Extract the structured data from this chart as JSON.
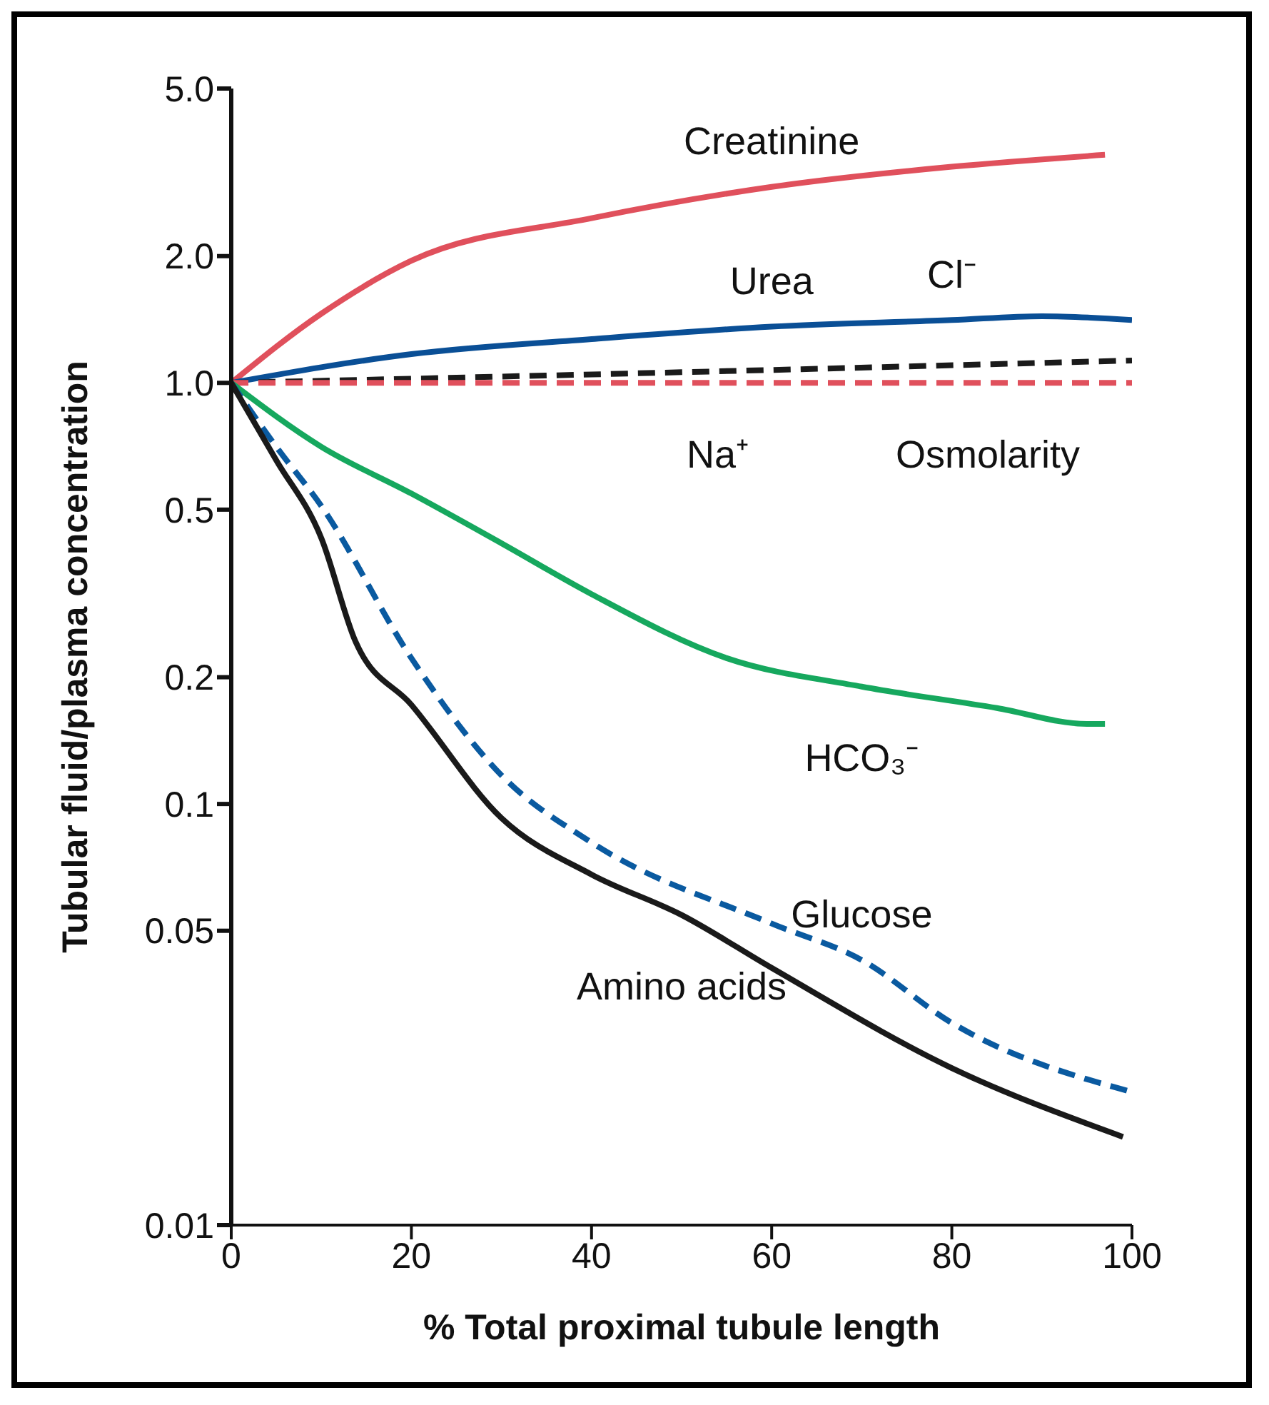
{
  "chart_data": {
    "type": "line",
    "xlabel": "% Total proximal tubule length",
    "ylabel": "Tubular fluid/plasma concentration",
    "log": "y",
    "xlim": [
      0,
      100
    ],
    "xticks": [
      0,
      20,
      40,
      60,
      80,
      100
    ],
    "ylim": [
      0.01,
      5
    ],
    "yticks": [
      {
        "value": 0.01,
        "label": "0.01"
      },
      0.05,
      0.1,
      0.2,
      0.5,
      {
        "value": 1,
        "label": "1.0"
      },
      {
        "value": 2,
        "label": "2.0"
      },
      {
        "value": 5,
        "label": "5.0"
      }
    ],
    "grid": false,
    "legend": false,
    "marker": "none",
    "series": [
      {
        "color": "#e0505c",
        "line_style": "solid",
        "x": [
          0,
          10,
          20,
          40,
          60,
          80,
          97
        ],
        "values": [
          1.0,
          1.46,
          1.95,
          2.46,
          2.92,
          3.26,
          3.48
        ]
      },
      {
        "color": "#0a4f96",
        "line_style": "solid",
        "x": [
          0,
          20,
          40,
          60,
          80,
          90,
          100
        ],
        "values": [
          1.0,
          1.17,
          1.27,
          1.36,
          1.41,
          1.44,
          1.41
        ]
      },
      {
        "color": "#1a1a1a",
        "line_style": "dashed",
        "x": [
          0,
          50,
          100
        ],
        "values": [
          1.0,
          1.06,
          1.13
        ]
      },
      {
        "color": "#e0505c",
        "line_style": "dashed",
        "x": [
          0,
          100
        ],
        "values": [
          1.0,
          1.0
        ]
      },
      {
        "color": "#16a85e",
        "line_style": "solid",
        "x": [
          0,
          10,
          20,
          30,
          40,
          55,
          70,
          85,
          95,
          97
        ],
        "values": [
          1.0,
          0.705,
          0.546,
          0.416,
          0.315,
          0.222,
          0.19,
          0.169,
          0.155,
          0.155
        ]
      },
      {
        "color": "#0a5aa0",
        "line_style": "dashed",
        "x": [
          0,
          5,
          10,
          20,
          30,
          40,
          60,
          70,
          80,
          100
        ],
        "values": [
          1.0,
          0.705,
          0.51,
          0.222,
          0.117,
          0.081,
          0.052,
          0.0426,
          0.0302,
          0.0207
        ]
      },
      {
        "color": "#1a1a1a",
        "line_style": "solid",
        "x": [
          0,
          5,
          10,
          13.8,
          20,
          30,
          40,
          50,
          60,
          80,
          99
        ],
        "values": [
          1.0,
          0.655,
          0.428,
          0.243,
          0.172,
          0.0926,
          0.068,
          0.0545,
          0.0408,
          0.0236,
          0.0162
        ]
      }
    ],
    "annotations": [
      {
        "text": "Creatinine",
        "x": 60,
        "y": 2.92
      },
      {
        "text": "Urea",
        "x": 60,
        "y": 1.36
      },
      {
        "text": "Cl⁻",
        "x": 80,
        "y": 1.1
      },
      {
        "text": "Na⁺",
        "x": 54,
        "y": 1.0
      },
      {
        "text": "Osmolarity",
        "x": 84,
        "y": 1.0
      },
      {
        "text": "HCO₃⁻",
        "x": 70,
        "y": 0.19
      },
      {
        "text": "Glucose",
        "x": 70,
        "y": 0.0426
      },
      {
        "text": "Amino acids",
        "x": 50,
        "y": 0.0545
      }
    ]
  }
}
